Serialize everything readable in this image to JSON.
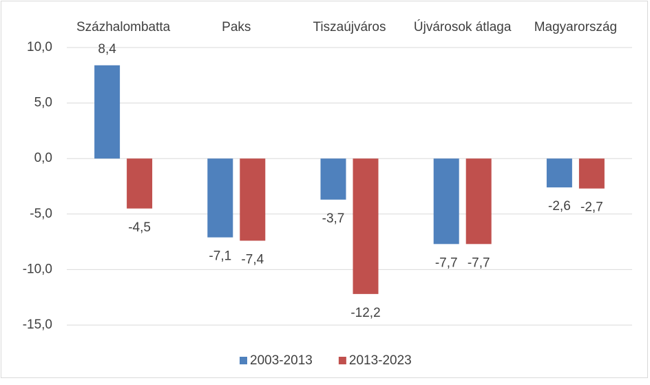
{
  "chart_data": {
    "type": "bar",
    "categories": [
      "Százhalombatta",
      "Paks",
      "Tiszaújváros",
      "Újvárosok átlaga",
      "Magyarország"
    ],
    "series": [
      {
        "name": "2003-2013",
        "color": "#4f81bd",
        "values": [
          8.4,
          -7.1,
          -3.7,
          -7.7,
          -2.6
        ],
        "value_labels": [
          "8,4",
          "-7,1",
          "-3,7",
          "-7,7",
          "-2,6"
        ]
      },
      {
        "name": "2013-2023",
        "color": "#c0504d",
        "values": [
          -4.5,
          -7.4,
          -12.2,
          -7.7,
          -2.7
        ],
        "value_labels": [
          "-4,5",
          "-7,4",
          "-12,2",
          "-7,7",
          "-2,7"
        ]
      }
    ],
    "ylim": [
      -15,
      10
    ],
    "yticks": [
      {
        "value": -15,
        "label": "-15,0"
      },
      {
        "value": -10,
        "label": "-10,0"
      },
      {
        "value": -5,
        "label": "-5,0"
      },
      {
        "value": 0,
        "label": "0,0"
      },
      {
        "value": 5,
        "label": "5,0"
      },
      {
        "value": 10,
        "label": "10,0"
      }
    ],
    "grid": true,
    "legend": "bottom"
  }
}
